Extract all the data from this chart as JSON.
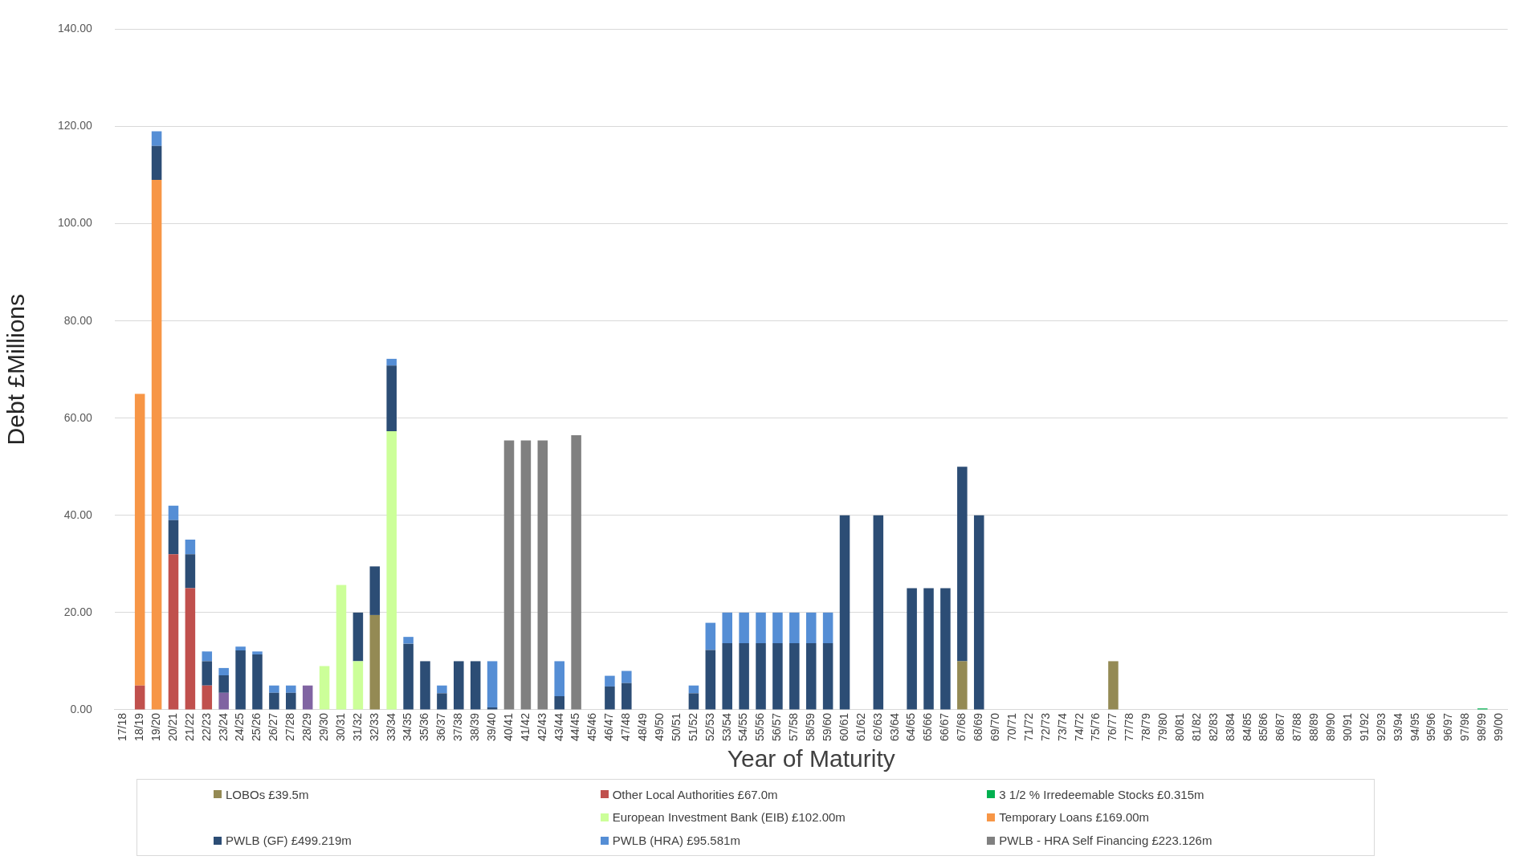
{
  "chart_data": {
    "type": "bar",
    "stacked": true,
    "xlabel": "Year of Maturity",
    "ylabel": "Debt £Millions",
    "categories": [
      "17/18",
      "18/19",
      "19/20",
      "20/21",
      "21/22",
      "22/23",
      "23/24",
      "24/25",
      "25/26",
      "26/27",
      "27/28",
      "28/29",
      "29/30",
      "30/31",
      "31/32",
      "32/33",
      "33/34",
      "34/35",
      "35/36",
      "36/37",
      "37/38",
      "38/39",
      "39/40",
      "40/41",
      "41/42",
      "42/43",
      "43/44",
      "44/45",
      "45/46",
      "46/47",
      "47/48",
      "48/49",
      "49/50",
      "50/51",
      "51/52",
      "52/53",
      "53/54",
      "54/55",
      "55/56",
      "56/57",
      "57/58",
      "58/59",
      "59/60",
      "60/61",
      "61/62",
      "62/63",
      "63/64",
      "64/65",
      "65/66",
      "66/67",
      "67/68",
      "68/69",
      "69/70",
      "70/71",
      "71/72",
      "72/73",
      "73/74",
      "74/72",
      "75/76",
      "76/77",
      "77/78",
      "78/79",
      "79/80",
      "80/81",
      "81/82",
      "82/83",
      "83/84",
      "84/85",
      "85/86",
      "86/87",
      "87/88",
      "88/89",
      "89/90",
      "90/91",
      "91/92",
      "92/93",
      "93/94",
      "94/95",
      "95/96",
      "96/97",
      "97/98",
      "98/99",
      "99/00"
    ],
    "ylim": [
      0,
      140
    ],
    "yticks": [
      {
        "value": 0,
        "label": "0.00"
      },
      {
        "value": 20,
        "label": "20.00"
      },
      {
        "value": 40,
        "label": "40.00"
      },
      {
        "value": 60,
        "label": "60.00"
      },
      {
        "value": 80,
        "label": "80.00"
      },
      {
        "value": 100,
        "label": "100.00"
      },
      {
        "value": 120,
        "label": "120.00"
      },
      {
        "value": 140,
        "label": "140.00"
      }
    ],
    "grid": "y",
    "legend": "bottom",
    "series": [
      {
        "name": "LOBOs £39.5m",
        "color": "#948a54",
        "values": [
          null,
          null,
          null,
          null,
          null,
          null,
          null,
          null,
          null,
          null,
          null,
          null,
          null,
          null,
          null,
          19.5,
          null,
          null,
          null,
          null,
          null,
          null,
          null,
          null,
          null,
          null,
          null,
          null,
          null,
          null,
          null,
          null,
          null,
          null,
          null,
          null,
          null,
          null,
          null,
          null,
          null,
          null,
          null,
          null,
          null,
          null,
          null,
          null,
          null,
          null,
          10,
          null,
          null,
          null,
          null,
          null,
          null,
          null,
          null,
          10,
          null,
          null,
          null,
          null,
          null,
          null,
          null,
          null,
          null,
          null,
          null,
          null,
          null,
          null,
          null,
          null,
          null,
          null,
          null,
          null,
          null,
          null,
          null
        ]
      },
      {
        "name": "Other Local Authorities £67.0m",
        "color": "#c0504d",
        "values": [
          null,
          5,
          null,
          32,
          25,
          5,
          null,
          null,
          null,
          null,
          null,
          null,
          null,
          null,
          null,
          null,
          null,
          null,
          null,
          null,
          null,
          null,
          null,
          null,
          null,
          null,
          null,
          null,
          null,
          null,
          null,
          null,
          null,
          null,
          null,
          null,
          null,
          null,
          null,
          null,
          null,
          null,
          null,
          null,
          null,
          null,
          null,
          null,
          null,
          null,
          null,
          null,
          null,
          null,
          null,
          null,
          null,
          null,
          null,
          null,
          null,
          null,
          null,
          null,
          null,
          null,
          null,
          null,
          null,
          null,
          null,
          null,
          null,
          null,
          null,
          null,
          null,
          null,
          null,
          null,
          null,
          null,
          null
        ]
      },
      {
        "name": "3 1/2 % Irredeemable Stocks £0.315m",
        "color": "#00b050",
        "values": [
          null,
          null,
          null,
          null,
          null,
          null,
          null,
          null,
          null,
          null,
          null,
          null,
          null,
          null,
          null,
          null,
          null,
          null,
          null,
          null,
          null,
          null,
          null,
          null,
          null,
          null,
          null,
          null,
          null,
          null,
          null,
          null,
          null,
          null,
          null,
          null,
          null,
          null,
          null,
          null,
          null,
          null,
          null,
          null,
          null,
          null,
          null,
          null,
          null,
          null,
          null,
          null,
          null,
          null,
          null,
          null,
          null,
          null,
          null,
          null,
          null,
          null,
          null,
          null,
          null,
          null,
          null,
          null,
          null,
          null,
          null,
          null,
          null,
          null,
          null,
          null,
          null,
          null,
          null,
          null,
          null,
          0.3,
          null
        ]
      },
      {
        "color": "#8064a2",
        "values": [
          null,
          null,
          null,
          null,
          null,
          null,
          3.5,
          null,
          null,
          null,
          null,
          5,
          null,
          null,
          null,
          null,
          null,
          null,
          null,
          null,
          null,
          null,
          null,
          null,
          null,
          null,
          null,
          null,
          null,
          null,
          null,
          null,
          null,
          null,
          null,
          null,
          null,
          null,
          null,
          null,
          null,
          null,
          null,
          null,
          null,
          null,
          null,
          null,
          null,
          null,
          null,
          null,
          null,
          null,
          null,
          null,
          null,
          null,
          null,
          null,
          null,
          null,
          null,
          null,
          null,
          null,
          null,
          null,
          null,
          null,
          null,
          null,
          null,
          null,
          null,
          null,
          null,
          null,
          null,
          null,
          null,
          null,
          null
        ]
      },
      {
        "name": "European Investment Bank (EIB) £102.00m",
        "color": "#ccff99",
        "values": [
          null,
          null,
          null,
          null,
          null,
          null,
          null,
          null,
          null,
          null,
          null,
          null,
          9,
          25.7,
          10,
          null,
          57.3,
          null,
          null,
          null,
          null,
          null,
          null,
          null,
          null,
          null,
          null,
          null,
          null,
          null,
          null,
          null,
          null,
          null,
          null,
          null,
          null,
          null,
          null,
          null,
          null,
          null,
          null,
          null,
          null,
          null,
          null,
          null,
          null,
          null,
          null,
          null,
          null,
          null,
          null,
          null,
          null,
          null,
          null,
          null,
          null,
          null,
          null,
          null,
          null,
          null,
          null,
          null,
          null,
          null,
          null,
          null,
          null,
          null,
          null,
          null,
          null,
          null,
          null,
          null,
          null,
          null,
          null
        ]
      },
      {
        "name": "Temporary Loans £169.00m",
        "color": "#f79646",
        "values": [
          null,
          60,
          109,
          null,
          null,
          null,
          null,
          null,
          null,
          null,
          null,
          null,
          null,
          null,
          null,
          null,
          null,
          null,
          null,
          null,
          null,
          null,
          null,
          null,
          null,
          null,
          null,
          null,
          null,
          null,
          null,
          null,
          null,
          null,
          null,
          null,
          null,
          null,
          null,
          null,
          null,
          null,
          null,
          null,
          null,
          null,
          null,
          null,
          null,
          null,
          null,
          null,
          null,
          null,
          null,
          null,
          null,
          null,
          null,
          null,
          null,
          null,
          null,
          null,
          null,
          null,
          null,
          null,
          null,
          null,
          null,
          null,
          null,
          null,
          null,
          null,
          null,
          null,
          null,
          null,
          null,
          null,
          null
        ]
      },
      {
        "name": "PWLB (GF) £499.219m",
        "color": "#2c4d75",
        "values": [
          null,
          null,
          7,
          7,
          7,
          5,
          3.6,
          12.2,
          11.4,
          3.5,
          3.5,
          null,
          null,
          null,
          10,
          10,
          13.5,
          13.6,
          10,
          3.4,
          10,
          10,
          0.5,
          null,
          null,
          null,
          2.8,
          null,
          null,
          4.8,
          5.5,
          null,
          null,
          null,
          3.4,
          12.3,
          13.7,
          13.7,
          13.7,
          13.7,
          13.7,
          13.7,
          13.7,
          40,
          null,
          40,
          null,
          25,
          25,
          25,
          40,
          40,
          null,
          null,
          null,
          null,
          null,
          null,
          null,
          null,
          null,
          null,
          null,
          null,
          null,
          null,
          null,
          null,
          null,
          null,
          null,
          null,
          null,
          null,
          null,
          null,
          null,
          null,
          null,
          null,
          null,
          null,
          null
        ]
      },
      {
        "name": "PWLB (HRA) £95.581m",
        "color": "#558ed5",
        "values": [
          null,
          null,
          3,
          3,
          3,
          2,
          1.5,
          0.8,
          0.6,
          1.5,
          1.5,
          null,
          null,
          null,
          null,
          null,
          1.4,
          1.4,
          null,
          1.6,
          null,
          null,
          9.5,
          null,
          null,
          null,
          7.2,
          null,
          null,
          2.2,
          2.5,
          null,
          null,
          null,
          1.6,
          5.6,
          6.3,
          6.3,
          6.3,
          6.3,
          6.3,
          6.3,
          6.3,
          null,
          null,
          null,
          null,
          null,
          null,
          null,
          null,
          null,
          null,
          null,
          null,
          null,
          null,
          null,
          null,
          null,
          null,
          null,
          null,
          null,
          null,
          null,
          null,
          null,
          null,
          null,
          null,
          null,
          null,
          null,
          null,
          null,
          null,
          null,
          null,
          null,
          null,
          null,
          null
        ]
      },
      {
        "name": "PWLB - HRA Self Financing £223.126m",
        "color": "#808080",
        "values": [
          null,
          null,
          null,
          null,
          null,
          null,
          null,
          null,
          null,
          null,
          null,
          null,
          null,
          null,
          null,
          null,
          null,
          null,
          null,
          null,
          null,
          null,
          null,
          55.4,
          55.4,
          55.4,
          null,
          56.5,
          null,
          null,
          null,
          null,
          null,
          null,
          null,
          null,
          null,
          null,
          null,
          null,
          null,
          null,
          null,
          null,
          null,
          null,
          null,
          null,
          null,
          null,
          null,
          null,
          null,
          null,
          null,
          null,
          null,
          null,
          null,
          null,
          null,
          null,
          null,
          null,
          null,
          null,
          null,
          null,
          null,
          null,
          null,
          null,
          null,
          null,
          null,
          null,
          null,
          null,
          null,
          null,
          null,
          null,
          null
        ]
      }
    ]
  }
}
